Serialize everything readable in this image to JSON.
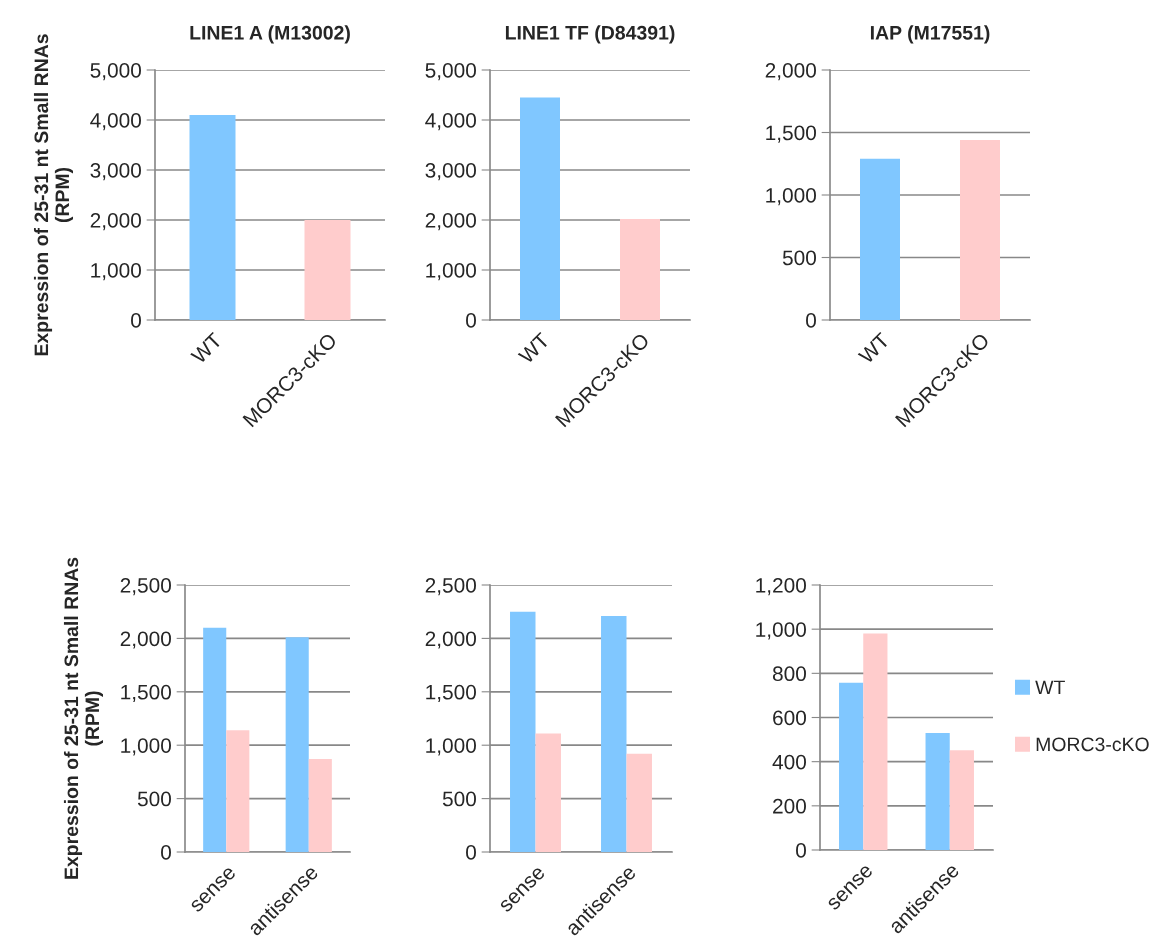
{
  "chart_data": [
    {
      "type": "bar",
      "title": "LINE1 A (M13002)",
      "ylabel": "Expression of 25-31 nt Small RNAs\n(RPM)",
      "categories": [
        "WT",
        "MORC3-cKO"
      ],
      "values": [
        4100,
        2000
      ],
      "colors": [
        "#80c7ff",
        "#ffcccc"
      ],
      "ylim": [
        0,
        5000
      ],
      "yticks": [
        {
          "value": 0,
          "label": "0"
        },
        {
          "value": 1000,
          "label": "1,000"
        },
        {
          "value": 2000,
          "label": "2,000"
        },
        {
          "value": 3000,
          "label": "3,000"
        },
        {
          "value": 4000,
          "label": "4,000"
        },
        {
          "value": 5000,
          "label": "5,000"
        }
      ],
      "grid": "y"
    },
    {
      "type": "bar",
      "title": "LINE1 TF (D84391)",
      "categories": [
        "WT",
        "MORC3-cKO"
      ],
      "values": [
        4450,
        2020
      ],
      "colors": [
        "#80c7ff",
        "#ffcccc"
      ],
      "ylim": [
        0,
        5000
      ],
      "yticks": [
        {
          "value": 0,
          "label": "0"
        },
        {
          "value": 1000,
          "label": "1,000"
        },
        {
          "value": 2000,
          "label": "2,000"
        },
        {
          "value": 3000,
          "label": "3,000"
        },
        {
          "value": 4000,
          "label": "4,000"
        },
        {
          "value": 5000,
          "label": "5,000"
        }
      ],
      "grid": "y"
    },
    {
      "type": "bar",
      "title": "IAP (M17551)",
      "categories": [
        "WT",
        "MORC3-cKO"
      ],
      "values": [
        1290,
        1440
      ],
      "colors": [
        "#80c7ff",
        "#ffcccc"
      ],
      "ylim": [
        0,
        2000
      ],
      "yticks": [
        {
          "value": 0,
          "label": "0"
        },
        {
          "value": 500,
          "label": "500"
        },
        {
          "value": 1000,
          "label": "1,000"
        },
        {
          "value": 1500,
          "label": "1,500"
        },
        {
          "value": 2000,
          "label": "2,000"
        }
      ],
      "grid": "y"
    },
    {
      "type": "bar",
      "ylabel": "Expression of 25-31 nt Small RNAs\n(RPM)",
      "categories": [
        "sense",
        "antisense"
      ],
      "series": [
        {
          "color": "#80c7ff",
          "values": [
            2100,
            2010
          ]
        },
        {
          "color": "#ffcccc",
          "values": [
            1140,
            870
          ]
        }
      ],
      "ylim": [
        0,
        2500
      ],
      "yticks": [
        {
          "value": 0,
          "label": "0"
        },
        {
          "value": 500,
          "label": "500"
        },
        {
          "value": 1000,
          "label": "1,000"
        },
        {
          "value": 1500,
          "label": "1,500"
        },
        {
          "value": 2000,
          "label": "2,000"
        },
        {
          "value": 2500,
          "label": "2,500"
        }
      ],
      "grid": "y"
    },
    {
      "type": "bar",
      "categories": [
        "sense",
        "antisense"
      ],
      "series": [
        {
          "color": "#80c7ff",
          "values": [
            2250,
            2210
          ]
        },
        {
          "color": "#ffcccc",
          "values": [
            1110,
            920
          ]
        }
      ],
      "ylim": [
        0,
        2500
      ],
      "yticks": [
        {
          "value": 0,
          "label": "0"
        },
        {
          "value": 500,
          "label": "500"
        },
        {
          "value": 1000,
          "label": "1,000"
        },
        {
          "value": 1500,
          "label": "1,500"
        },
        {
          "value": 2000,
          "label": "2,000"
        },
        {
          "value": 2500,
          "label": "2,500"
        }
      ],
      "grid": "y"
    },
    {
      "type": "bar",
      "categories": [
        "sense",
        "antisense"
      ],
      "series": [
        {
          "name": "WT",
          "color": "#80c7ff",
          "values": [
            757,
            530
          ]
        },
        {
          "name": "MORC3-cKO",
          "color": "#ffcccc",
          "values": [
            980,
            452
          ]
        }
      ],
      "ylim": [
        0,
        1200
      ],
      "yticks": [
        {
          "value": 0,
          "label": "0"
        },
        {
          "value": 200,
          "label": "200"
        },
        {
          "value": 400,
          "label": "400"
        },
        {
          "value": 600,
          "label": "600"
        },
        {
          "value": 800,
          "label": "800"
        },
        {
          "value": 1000,
          "label": "1,000"
        },
        {
          "value": 1200,
          "label": "1,200"
        }
      ],
      "grid": "y",
      "legend": "right"
    }
  ]
}
